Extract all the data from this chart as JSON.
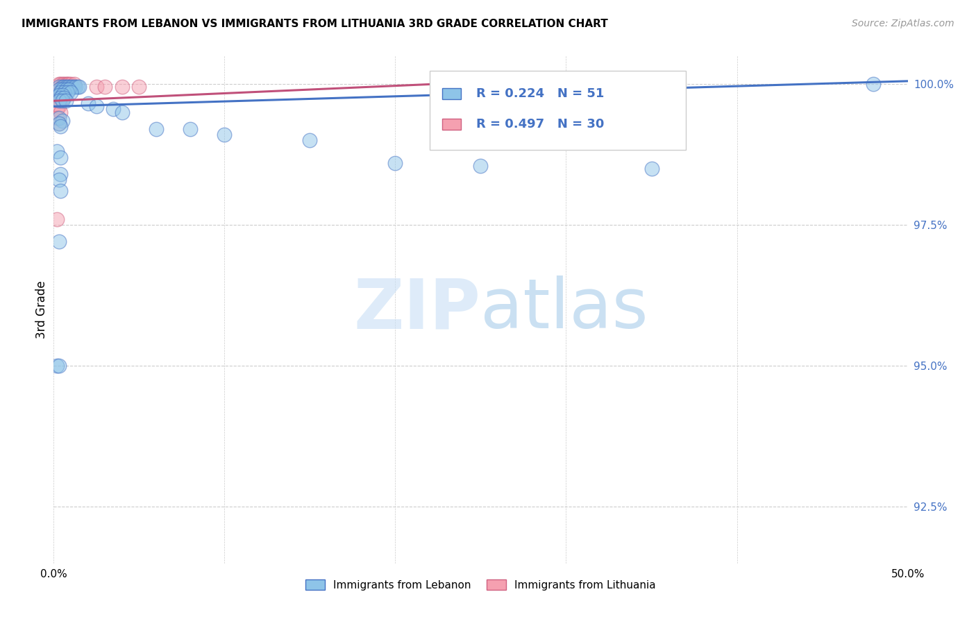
{
  "title": "IMMIGRANTS FROM LEBANON VS IMMIGRANTS FROM LITHUANIA 3RD GRADE CORRELATION CHART",
  "source": "Source: ZipAtlas.com",
  "ylabel": "3rd Grade",
  "xlim": [
    0.0,
    0.5
  ],
  "ylim": [
    0.915,
    1.005
  ],
  "ytick_labels": [
    "92.5%",
    "95.0%",
    "97.5%",
    "100.0%"
  ],
  "ytick_values": [
    0.925,
    0.95,
    0.975,
    1.0
  ],
  "xtick_values": [
    0.0,
    0.1,
    0.2,
    0.3,
    0.4,
    0.5
  ],
  "xtick_display": [
    0.0,
    0.5
  ],
  "legend_label1": "Immigrants from Lebanon",
  "legend_label2": "Immigrants from Lithuania",
  "R1": 0.224,
  "N1": 51,
  "R2": 0.497,
  "N2": 30,
  "color_lebanon": "#8ec4e8",
  "color_lithuania": "#f5a0b0",
  "color_lebanon_line": "#4472c4",
  "color_lithuania_line": "#c0507a",
  "color_right_axis": "#4472c4",
  "blue_line": {
    "x0": 0.0,
    "x1": 0.5,
    "y0": 0.996,
    "y1": 1.0005
  },
  "pink_line": {
    "x0": 0.0,
    "x1": 0.3,
    "y0": 0.997,
    "y1": 1.001
  },
  "blue_dots": [
    [
      0.003,
      0.9995
    ],
    [
      0.005,
      0.9995
    ],
    [
      0.006,
      0.9995
    ],
    [
      0.007,
      0.9995
    ],
    [
      0.008,
      0.9995
    ],
    [
      0.009,
      0.9995
    ],
    [
      0.01,
      0.9995
    ],
    [
      0.011,
      0.9995
    ],
    [
      0.012,
      0.9995
    ],
    [
      0.013,
      0.9995
    ],
    [
      0.014,
      0.9995
    ],
    [
      0.015,
      0.9995
    ],
    [
      0.003,
      0.999
    ],
    [
      0.005,
      0.999
    ],
    [
      0.007,
      0.999
    ],
    [
      0.009,
      0.999
    ],
    [
      0.004,
      0.9985
    ],
    [
      0.006,
      0.9985
    ],
    [
      0.008,
      0.9985
    ],
    [
      0.01,
      0.9985
    ],
    [
      0.003,
      0.998
    ],
    [
      0.005,
      0.998
    ],
    [
      0.004,
      0.9975
    ],
    [
      0.006,
      0.9975
    ],
    [
      0.003,
      0.997
    ],
    [
      0.005,
      0.997
    ],
    [
      0.007,
      0.997
    ],
    [
      0.02,
      0.9965
    ],
    [
      0.025,
      0.996
    ],
    [
      0.035,
      0.9955
    ],
    [
      0.04,
      0.995
    ],
    [
      0.003,
      0.994
    ],
    [
      0.005,
      0.9935
    ],
    [
      0.003,
      0.993
    ],
    [
      0.004,
      0.9925
    ],
    [
      0.06,
      0.992
    ],
    [
      0.08,
      0.992
    ],
    [
      0.1,
      0.991
    ],
    [
      0.15,
      0.99
    ],
    [
      0.002,
      0.988
    ],
    [
      0.004,
      0.987
    ],
    [
      0.2,
      0.986
    ],
    [
      0.25,
      0.9855
    ],
    [
      0.35,
      0.985
    ],
    [
      0.004,
      0.984
    ],
    [
      0.003,
      0.983
    ],
    [
      0.004,
      0.981
    ],
    [
      0.003,
      0.972
    ],
    [
      0.002,
      0.95
    ],
    [
      0.48,
      1.0
    ],
    [
      0.003,
      0.95
    ]
  ],
  "pink_dots": [
    [
      0.003,
      1.0
    ],
    [
      0.004,
      1.0
    ],
    [
      0.005,
      1.0
    ],
    [
      0.006,
      1.0
    ],
    [
      0.007,
      1.0
    ],
    [
      0.008,
      1.0
    ],
    [
      0.009,
      1.0
    ],
    [
      0.01,
      1.0
    ],
    [
      0.012,
      1.0
    ],
    [
      0.025,
      0.9995
    ],
    [
      0.03,
      0.9995
    ],
    [
      0.003,
      0.999
    ],
    [
      0.005,
      0.999
    ],
    [
      0.04,
      0.9995
    ],
    [
      0.05,
      0.9995
    ],
    [
      0.003,
      0.9985
    ],
    [
      0.005,
      0.9985
    ],
    [
      0.002,
      0.998
    ],
    [
      0.004,
      0.998
    ],
    [
      0.003,
      0.9975
    ],
    [
      0.005,
      0.9975
    ],
    [
      0.002,
      0.997
    ],
    [
      0.004,
      0.997
    ],
    [
      0.003,
      0.996
    ],
    [
      0.002,
      0.9955
    ],
    [
      0.004,
      0.995
    ],
    [
      0.002,
      0.994
    ],
    [
      0.003,
      0.993
    ],
    [
      0.002,
      0.976
    ],
    [
      0.28,
      0.9995
    ]
  ]
}
